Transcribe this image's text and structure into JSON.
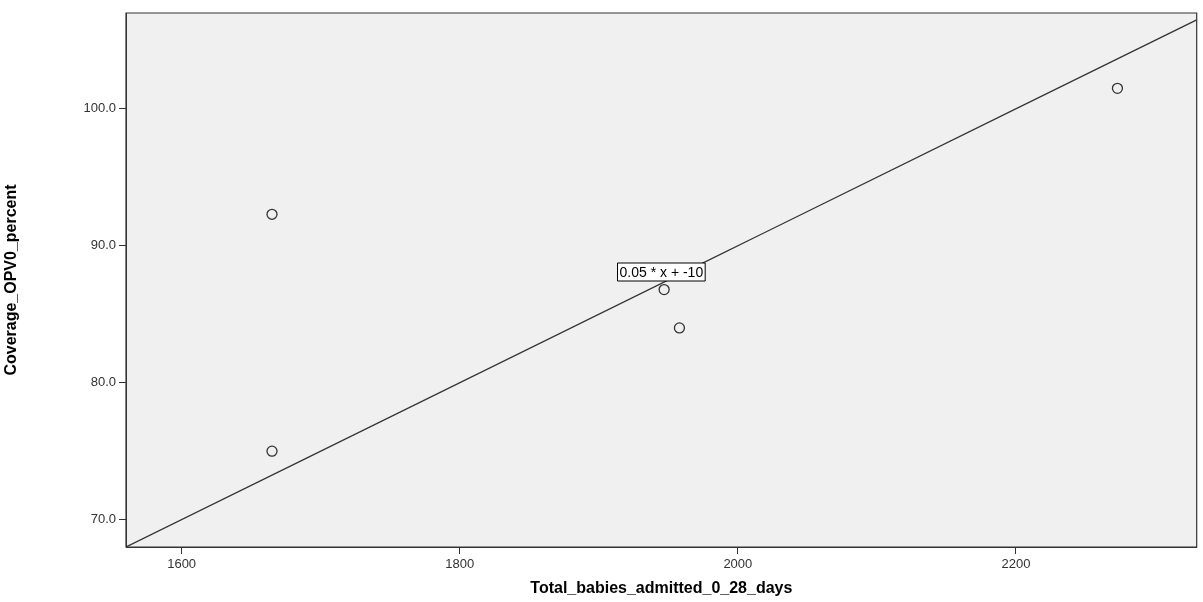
{
  "chart_data": {
    "type": "scatter",
    "xlabel": "Total_babies_admitted_0_28_days",
    "ylabel": "Coverage_OPV0_percent",
    "xlim": [
      1560,
      2330
    ],
    "xticks": [
      1600,
      1800,
      2000,
      2200
    ],
    "ylim": [
      68,
      107
    ],
    "yticks": [
      {
        "value": 70,
        "label": "70.0"
      },
      {
        "value": 80,
        "label": "80.0"
      },
      {
        "value": 90,
        "label": "90.0"
      },
      {
        "value": 100,
        "label": "100.0"
      }
    ],
    "series": [
      {
        "marker": "circle",
        "color": "#333333",
        "x": [
          1665,
          1665,
          1947,
          1958,
          2273
        ],
        "values": [
          92.3,
          75.0,
          86.8,
          84.0,
          101.5
        ]
      },
      {
        "type": "line",
        "color": "#333333",
        "x": [
          1560,
          2330
        ],
        "values": [
          68,
          106.5
        ]
      }
    ],
    "annotations": [
      "0.05 * x + -10"
    ],
    "grid": false,
    "legend": false
  }
}
